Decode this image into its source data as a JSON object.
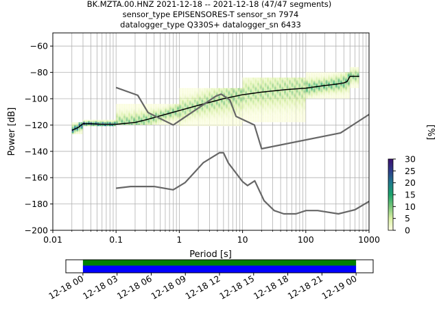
{
  "title_lines": [
    "BK.MZTA.00.HNZ   2021-12-18 -- 2021-12-18  (47/47 segments)",
    "sensor_type EPISENSORES-T sensor_sn 7974",
    "datalogger_type Q330S+ datalogger_sn 6433"
  ],
  "chart_data": [
    {
      "type": "heatmap",
      "xlabel": "Period [s]",
      "ylabel": "Power [dB]",
      "xscale": "log",
      "xlim": [
        0.01,
        1000
      ],
      "ylim": [
        -200,
        -50
      ],
      "x_ticks": [
        0.01,
        0.1,
        1,
        10,
        100,
        1000
      ],
      "x_tick_labels": [
        "0.01",
        "0.1",
        "1",
        "10",
        "100",
        "1000"
      ],
      "y_ticks": [
        -200,
        -180,
        -160,
        -140,
        -120,
        -100,
        -80,
        -60
      ],
      "y_tick_labels": [
        "−200",
        "−180",
        "−160",
        "−140",
        "−120",
        "−100",
        "−80",
        "−60"
      ],
      "grid": true,
      "colorbar": {
        "label": "[%]",
        "range": [
          0,
          30
        ],
        "ticks": [
          0,
          5,
          10,
          15,
          20,
          25,
          30
        ],
        "tick_labels": [
          "0",
          "5",
          "10",
          "15",
          "20",
          "25",
          "30"
        ],
        "colors": [
          "#ffffe5",
          "#d9f0a3",
          "#78c679",
          "#1ba36b",
          "#1f7a8c",
          "#2d3d8a",
          "#3b0f70"
        ]
      },
      "series": [
        {
          "role": "mean",
          "color": "#000000",
          "points": [
            [
              0.02,
              -124
            ],
            [
              0.025,
              -122
            ],
            [
              0.03,
              -119
            ],
            [
              0.04,
              -119
            ],
            [
              0.06,
              -119.5
            ],
            [
              0.1,
              -119.5
            ],
            [
              0.2,
              -118
            ],
            [
              0.3,
              -116
            ],
            [
              0.5,
              -113
            ],
            [
              1,
              -109
            ],
            [
              2,
              -105
            ],
            [
              5,
              -100
            ],
            [
              10,
              -97
            ],
            [
              20,
              -95
            ],
            [
              50,
              -93
            ],
            [
              100,
              -92
            ],
            [
              200,
              -90
            ],
            [
              300,
              -89
            ],
            [
              400,
              -88
            ],
            [
              450,
              -87
            ],
            [
              500,
              -83
            ],
            [
              700,
              -83
            ]
          ]
        },
        {
          "role": "noise-model-high",
          "color": "#666666",
          "points": [
            [
              0.1,
              -91.5
            ],
            [
              0.22,
              -97.4
            ],
            [
              0.32,
              -110.5
            ],
            [
              0.8,
              -120
            ],
            [
              3.8,
              -98
            ],
            [
              4.6,
              -96.5
            ],
            [
              6.3,
              -101
            ],
            [
              7.9,
              -113.5
            ],
            [
              15.4,
              -120
            ],
            [
              20,
              -138
            ],
            [
              354.8,
              -126
            ],
            [
              1000,
              -112
            ]
          ]
        },
        {
          "role": "noise-model-low",
          "color": "#666666",
          "points": [
            [
              0.1,
              -168
            ],
            [
              0.17,
              -166.7
            ],
            [
              0.4,
              -166.7
            ],
            [
              0.8,
              -169.2
            ],
            [
              1.24,
              -163.7
            ],
            [
              2.4,
              -148.6
            ],
            [
              4.3,
              -141.1
            ],
            [
              5,
              -141.1
            ],
            [
              6,
              -149
            ],
            [
              10,
              -163
            ],
            [
              12,
              -166
            ],
            [
              15.6,
              -162.4
            ],
            [
              21.9,
              -177.5
            ],
            [
              31.6,
              -185
            ],
            [
              45,
              -187.5
            ],
            [
              70,
              -187.5
            ],
            [
              101,
              -185
            ],
            [
              154,
              -185
            ],
            [
              328,
              -187.5
            ],
            [
              600,
              -184.4
            ],
            [
              1000,
              -178
            ]
          ]
        }
      ],
      "density_bands": [
        {
          "x": [
            0.02,
            0.03
          ],
          "y": [
            -127,
            -118
          ],
          "peak": 26
        },
        {
          "x": [
            0.03,
            0.1
          ],
          "y": [
            -121,
            -116
          ],
          "peak": 28
        },
        {
          "x": [
            0.1,
            1
          ],
          "y": [
            -120,
            -104
          ],
          "peak": 12
        },
        {
          "x": [
            1,
            10
          ],
          "y": [
            -121,
            -92
          ],
          "peak": 10
        },
        {
          "x": [
            10,
            100
          ],
          "y": [
            -118,
            -84
          ],
          "peak": 9
        },
        {
          "x": [
            100,
            500
          ],
          "y": [
            -100,
            -80
          ],
          "peak": 14
        },
        {
          "x": [
            500,
            700
          ],
          "y": [
            -92,
            -76
          ],
          "peak": 12
        }
      ]
    },
    {
      "type": "bar",
      "orientation": "horizontal",
      "role": "data-availability",
      "x_tick_labels": [
        "12-18 00",
        "12-18 03",
        "12-18 06",
        "12-18 09",
        "12-18 12",
        "12-18 15",
        "12-18 18",
        "12-18 21",
        "12-19 00"
      ],
      "xlim": [
        "2021-12-17 22:30",
        "2021-12-19 01:30"
      ],
      "segments": [
        {
          "start": "2021-12-18 00:00",
          "end": "2021-12-19 00:00",
          "color": "#008000"
        },
        {
          "start": "2021-12-18 00:00",
          "end": "2021-12-19 00:00",
          "color": "#0000ff"
        }
      ]
    }
  ]
}
